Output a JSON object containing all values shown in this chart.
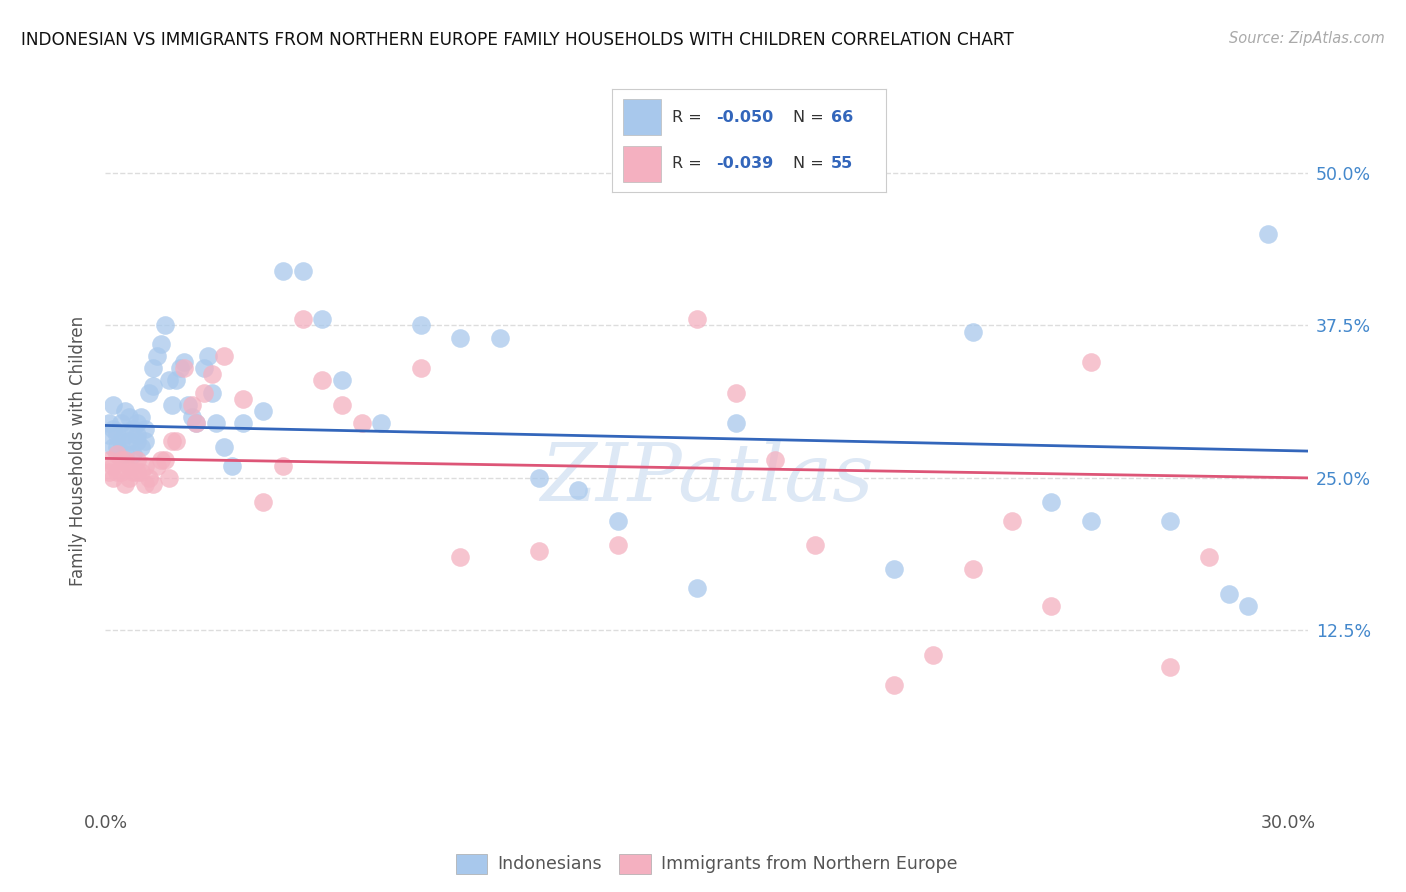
{
  "title": "INDONESIAN VS IMMIGRANTS FROM NORTHERN EUROPE FAMILY HOUSEHOLDS WITH CHILDREN CORRELATION CHART",
  "source": "Source: ZipAtlas.com",
  "ylabel": "Family Households with Children",
  "ytick_labels": [
    "12.5%",
    "25.0%",
    "37.5%",
    "50.0%"
  ],
  "ytick_values": [
    0.125,
    0.25,
    0.375,
    0.5
  ],
  "legend_label_blue": "Indonesians",
  "legend_label_pink": "Immigrants from Northern Europe",
  "blue_scatter_color": "#a8c8ec",
  "pink_scatter_color": "#f4b0c0",
  "blue_line_color": "#3366bb",
  "pink_line_color": "#dd5577",
  "blue_r_color": "#3366bb",
  "pink_r_color": "#3366bb",
  "right_tick_color": "#4488cc",
  "background_color": "#ffffff",
  "grid_color": "#dddddd",
  "title_color": "#111111",
  "source_color": "#aaaaaa",
  "axis_label_color": "#555555",
  "xlim": [
    0.0,
    0.305
  ],
  "ylim": [
    -0.02,
    0.565
  ],
  "blue_x": [
    0.001,
    0.001,
    0.002,
    0.002,
    0.002,
    0.003,
    0.003,
    0.004,
    0.004,
    0.005,
    0.005,
    0.005,
    0.006,
    0.006,
    0.007,
    0.007,
    0.008,
    0.008,
    0.008,
    0.009,
    0.009,
    0.01,
    0.01,
    0.011,
    0.012,
    0.012,
    0.013,
    0.014,
    0.015,
    0.016,
    0.017,
    0.018,
    0.019,
    0.02,
    0.021,
    0.022,
    0.023,
    0.025,
    0.026,
    0.027,
    0.028,
    0.03,
    0.032,
    0.035,
    0.04,
    0.045,
    0.05,
    0.055,
    0.06,
    0.07,
    0.08,
    0.09,
    0.1,
    0.11,
    0.12,
    0.13,
    0.15,
    0.16,
    0.2,
    0.22,
    0.24,
    0.25,
    0.27,
    0.285,
    0.29,
    0.295
  ],
  "blue_y": [
    0.285,
    0.295,
    0.275,
    0.29,
    0.31,
    0.285,
    0.275,
    0.295,
    0.28,
    0.305,
    0.285,
    0.27,
    0.3,
    0.28,
    0.29,
    0.27,
    0.295,
    0.285,
    0.28,
    0.3,
    0.275,
    0.29,
    0.28,
    0.32,
    0.34,
    0.325,
    0.35,
    0.36,
    0.375,
    0.33,
    0.31,
    0.33,
    0.34,
    0.345,
    0.31,
    0.3,
    0.295,
    0.34,
    0.35,
    0.32,
    0.295,
    0.275,
    0.26,
    0.295,
    0.305,
    0.42,
    0.42,
    0.38,
    0.33,
    0.295,
    0.375,
    0.365,
    0.365,
    0.25,
    0.24,
    0.215,
    0.16,
    0.295,
    0.175,
    0.37,
    0.23,
    0.215,
    0.215,
    0.155,
    0.145,
    0.45
  ],
  "pink_x": [
    0.001,
    0.001,
    0.002,
    0.002,
    0.003,
    0.003,
    0.004,
    0.004,
    0.005,
    0.005,
    0.006,
    0.006,
    0.007,
    0.008,
    0.008,
    0.009,
    0.01,
    0.01,
    0.011,
    0.012,
    0.013,
    0.014,
    0.015,
    0.016,
    0.017,
    0.018,
    0.02,
    0.022,
    0.023,
    0.025,
    0.027,
    0.03,
    0.035,
    0.04,
    0.045,
    0.05,
    0.055,
    0.06,
    0.065,
    0.08,
    0.09,
    0.11,
    0.13,
    0.15,
    0.16,
    0.17,
    0.18,
    0.2,
    0.21,
    0.22,
    0.23,
    0.24,
    0.25,
    0.27,
    0.28
  ],
  "pink_y": [
    0.255,
    0.265,
    0.25,
    0.26,
    0.255,
    0.27,
    0.255,
    0.265,
    0.265,
    0.245,
    0.26,
    0.25,
    0.255,
    0.255,
    0.265,
    0.255,
    0.26,
    0.245,
    0.25,
    0.245,
    0.26,
    0.265,
    0.265,
    0.25,
    0.28,
    0.28,
    0.34,
    0.31,
    0.295,
    0.32,
    0.335,
    0.35,
    0.315,
    0.23,
    0.26,
    0.38,
    0.33,
    0.31,
    0.295,
    0.34,
    0.185,
    0.19,
    0.195,
    0.38,
    0.32,
    0.265,
    0.195,
    0.08,
    0.105,
    0.175,
    0.215,
    0.145,
    0.345,
    0.095,
    0.185
  ]
}
